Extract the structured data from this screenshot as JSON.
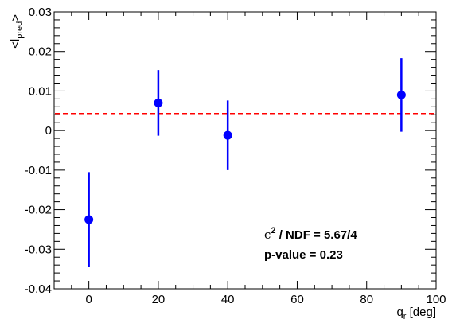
{
  "chart_data": {
    "type": "scatter",
    "title": "",
    "xlabel": {
      "main": "q",
      "sub": "r",
      "unit": " [deg]"
    },
    "ylabel": {
      "main": "<l",
      "sub": "pred",
      "close": ">"
    },
    "xlim": [
      -10,
      100
    ],
    "ylim": [
      -0.04,
      0.03
    ],
    "x_ticks": [
      0,
      20,
      40,
      60,
      80,
      100
    ],
    "y_ticks": [
      -0.04,
      -0.03,
      -0.02,
      -0.01,
      0,
      0.01,
      0.02,
      0.03
    ],
    "y_tick_labels": [
      "-0.04",
      "-0.03",
      "-0.02",
      "-0.01",
      "0",
      "0.01",
      "0.02",
      "0.03"
    ],
    "grid": false,
    "series": [
      {
        "color": "#0000ff",
        "points": [
          {
            "x": 0,
            "y": -0.0225,
            "err_low": 0.012,
            "err_high": 0.012
          },
          {
            "x": 20,
            "y": 0.007,
            "err_low": 0.0083,
            "err_high": 0.0083
          },
          {
            "x": 40,
            "y": -0.0012,
            "err_low": 0.0088,
            "err_high": 0.0088
          },
          {
            "x": 90,
            "y": 0.009,
            "err_low": 0.0093,
            "err_high": 0.0093
          }
        ]
      }
    ],
    "reference_line": {
      "y": 0.0043,
      "color": "#ff0000",
      "style": "dashed"
    },
    "annotations": {
      "chi2_symbol": "c",
      "chi2_exp": "2",
      "chi2_text": " / NDF = 5.67/4",
      "pvalue": "p-value = 0.23"
    }
  }
}
